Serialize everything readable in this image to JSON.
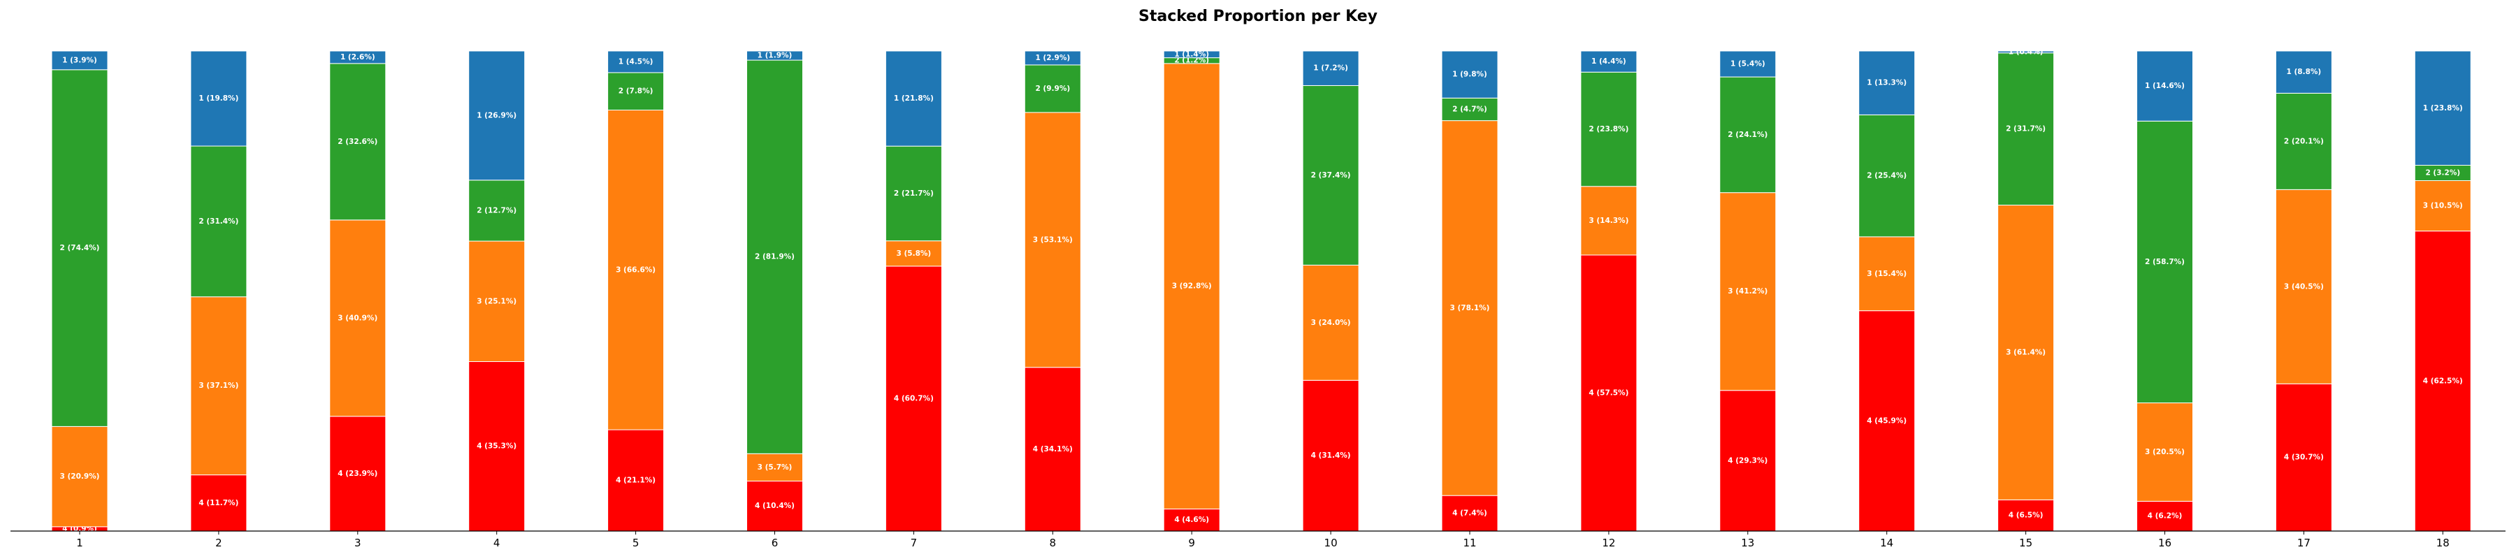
{
  "chart_data": {
    "type": "bar",
    "stacked": true,
    "normalized": true,
    "title": "Stacked Proportion per Key",
    "xlabel": "",
    "ylabel": "",
    "ylim": [
      0,
      1
    ],
    "grid": false,
    "legend": false,
    "categories": [
      "1",
      "2",
      "3",
      "4",
      "5",
      "6",
      "7",
      "8",
      "9",
      "10",
      "11",
      "12",
      "13",
      "14",
      "15",
      "16",
      "17",
      "18"
    ],
    "stack_order_bottom_to_top": [
      "4",
      "3",
      "2",
      "1"
    ],
    "series": [
      {
        "id": "4",
        "color": "#ff0000",
        "values": [
          0.9,
          11.7,
          23.9,
          35.3,
          21.1,
          10.4,
          60.7,
          34.1,
          4.6,
          31.4,
          7.4,
          57.5,
          29.3,
          45.9,
          6.5,
          6.2,
          30.7,
          62.5
        ]
      },
      {
        "id": "3",
        "color": "#ff7f0e",
        "values": [
          20.9,
          37.1,
          40.9,
          25.1,
          66.6,
          5.7,
          5.8,
          53.1,
          92.8,
          24.0,
          78.1,
          14.3,
          41.2,
          15.4,
          61.4,
          20.5,
          40.5,
          10.5
        ]
      },
      {
        "id": "2",
        "color": "#2ca02c",
        "values": [
          74.4,
          31.4,
          32.6,
          12.7,
          7.8,
          81.9,
          21.7,
          9.9,
          1.2,
          37.4,
          4.7,
          23.8,
          24.1,
          25.4,
          31.7,
          58.7,
          20.1,
          3.2
        ]
      },
      {
        "id": "1",
        "color": "#1f77b4",
        "values": [
          3.9,
          19.8,
          2.6,
          26.9,
          4.5,
          1.9,
          21.8,
          2.9,
          1.4,
          7.2,
          9.8,
          4.4,
          5.4,
          13.3,
          0.4,
          14.6,
          8.8,
          23.8
        ]
      }
    ]
  }
}
